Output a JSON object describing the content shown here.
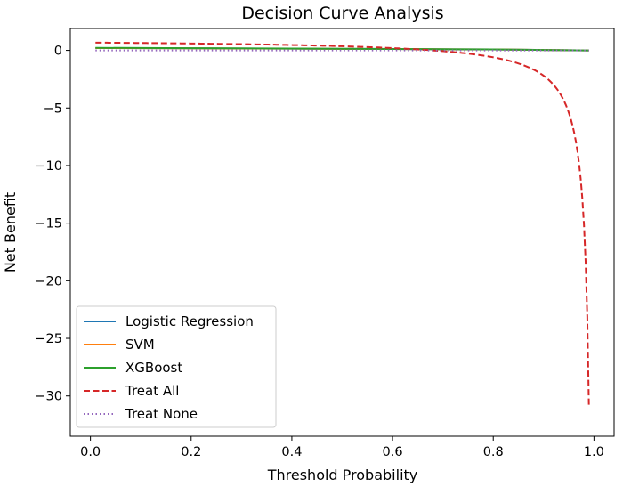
{
  "chart_data": {
    "type": "line",
    "title": "Decision Curve Analysis",
    "xlabel": "Threshold Probability",
    "ylabel": "Net Benefit",
    "xlim": [
      -0.04,
      1.04
    ],
    "ylim": [
      -33.5,
      1.9
    ],
    "xticks": [
      0.0,
      0.2,
      0.4,
      0.6,
      0.8,
      1.0
    ],
    "xtick_labels": [
      "0.0",
      "0.2",
      "0.4",
      "0.6",
      "0.8",
      "1.0"
    ],
    "yticks": [
      0,
      -5,
      -10,
      -15,
      -20,
      -25,
      -30
    ],
    "ytick_labels": [
      "0",
      "−5",
      "−10",
      "−15",
      "−20",
      "−25",
      "−30"
    ],
    "grid": false,
    "legend_position": "lower-left",
    "prevalence": 0.68,
    "x_range": [
      0.01,
      0.99
    ],
    "series": [
      {
        "name": "Logistic Regression",
        "color": "#1f77b4",
        "style": "solid",
        "x": [
          0.01,
          0.2,
          0.4,
          0.6,
          0.8,
          0.99
        ],
        "values": [
          0.2,
          0.18,
          0.15,
          0.12,
          0.08,
          0.0
        ]
      },
      {
        "name": "SVM",
        "color": "#ff7f0e",
        "style": "solid",
        "x": [
          0.01,
          0.2,
          0.4,
          0.6,
          0.8,
          0.99
        ],
        "values": [
          0.2,
          0.18,
          0.15,
          0.12,
          0.08,
          0.0
        ]
      },
      {
        "name": "XGBoost",
        "color": "#2ca02c",
        "style": "solid",
        "x": [
          0.01,
          0.2,
          0.4,
          0.6,
          0.8,
          0.99
        ],
        "values": [
          0.22,
          0.19,
          0.16,
          0.12,
          0.08,
          0.0
        ]
      },
      {
        "name": "Treat All",
        "color": "#d62728",
        "style": "dashed",
        "formula": "treat_all"
      },
      {
        "name": "Treat None",
        "color": "#9467bd",
        "style": "dotted",
        "x": [
          0.01,
          0.99
        ],
        "values": [
          0,
          0
        ]
      }
    ]
  }
}
